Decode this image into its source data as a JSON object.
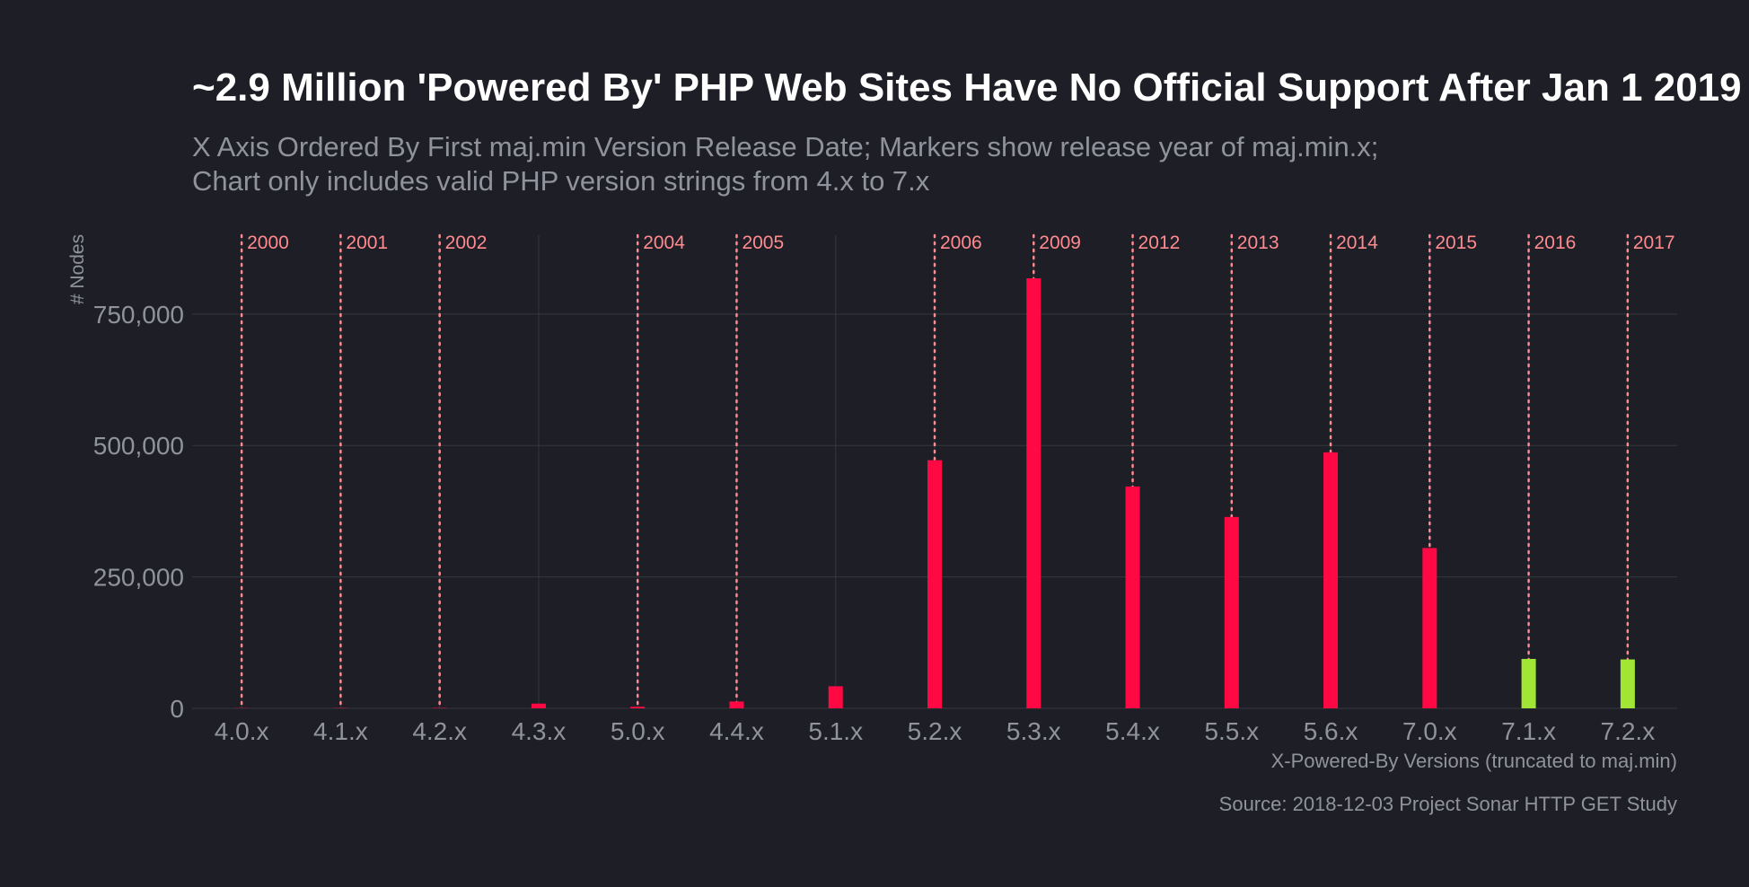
{
  "colors": {
    "background": "#1e1f26",
    "title": "#ffffff",
    "muted": "#8f939c",
    "grid": "#35373f",
    "unsupported": "#ff0844",
    "supported": "#a2e635",
    "marker": "#ff8a8f"
  },
  "chart_data": {
    "type": "bar",
    "title": "~2.9 Million 'Powered By' PHP Web Sites Have No Official Support After Jan 1 2019",
    "subtitle_lines": [
      "X Axis Ordered By First maj.min Version Release Date; Markers show release year of maj.min.x;",
      "Chart only includes valid PHP version strings from 4.x to 7.x"
    ],
    "xlabel": "X-Powered-By Versions (truncated to maj.min)",
    "ylabel": "# Nodes",
    "caption": "Source: 2018-12-03 Project Sonar HTTP GET Study",
    "categories": [
      "4.0.x",
      "4.1.x",
      "4.2.x",
      "4.3.x",
      "5.0.x",
      "4.4.x",
      "5.1.x",
      "5.2.x",
      "5.3.x",
      "5.4.x",
      "5.5.x",
      "5.6.x",
      "7.0.x",
      "7.1.x",
      "7.2.x"
    ],
    "values": [
      500,
      600,
      800,
      9000,
      3000,
      13000,
      42000,
      472000,
      818000,
      422000,
      364000,
      487000,
      305000,
      94000,
      93000
    ],
    "supported": [
      false,
      false,
      false,
      false,
      false,
      false,
      false,
      false,
      false,
      false,
      false,
      false,
      false,
      true,
      true
    ],
    "markers": [
      {
        "category": "4.0.x",
        "label": "2000"
      },
      {
        "category": "4.1.x",
        "label": "2001"
      },
      {
        "category": "4.2.x",
        "label": "2002"
      },
      {
        "category": "5.0.x",
        "label": "2004"
      },
      {
        "category": "4.4.x",
        "label": "2005"
      },
      {
        "category": "5.2.x",
        "label": "2006"
      },
      {
        "category": "5.3.x",
        "label": "2009"
      },
      {
        "category": "5.4.x",
        "label": "2012"
      },
      {
        "category": "5.5.x",
        "label": "2013"
      },
      {
        "category": "5.6.x",
        "label": "2014"
      },
      {
        "category": "7.0.x",
        "label": "2015"
      },
      {
        "category": "7.1.x",
        "label": "2016"
      },
      {
        "category": "7.2.x",
        "label": "2017"
      }
    ],
    "yticks": [
      0,
      250000,
      500000,
      750000
    ],
    "ytick_labels": [
      "0",
      "250,000",
      "500,000",
      "750,000"
    ],
    "ylim": [
      0,
      900000
    ],
    "grid": true
  }
}
